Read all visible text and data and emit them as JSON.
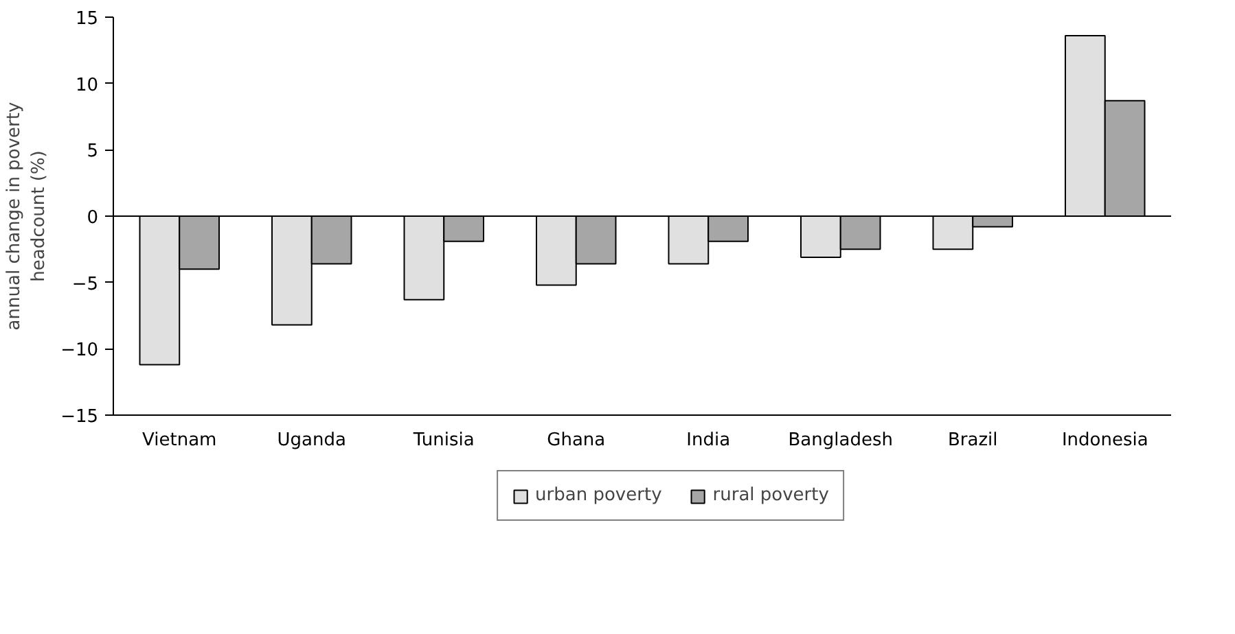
{
  "chart_data": {
    "type": "bar",
    "ylabel": "annual change in poverty\nheadcount (%)",
    "categories": [
      "Vietnam",
      "Uganda",
      "Tunisia",
      "Ghana",
      "India",
      "Bangladesh",
      "Brazil",
      "Indonesia"
    ],
    "series": [
      {
        "name": "urban poverty",
        "color": "#e0e0e0",
        "values": [
          -11.2,
          -8.2,
          -6.3,
          -5.2,
          -3.6,
          -3.1,
          -2.5,
          13.6
        ]
      },
      {
        "name": "rural poverty",
        "color": "#a6a6a6",
        "values": [
          -4.0,
          -3.6,
          -1.9,
          -3.6,
          -1.9,
          -2.5,
          -0.8,
          8.7
        ]
      }
    ],
    "ylim": [
      -15,
      15
    ],
    "yticks": [
      -15,
      -10,
      -5,
      0,
      5,
      10,
      15
    ],
    "ref_lines": [
      {
        "axis": "y",
        "value": 0
      }
    ],
    "grid": false,
    "legend": "bottom"
  }
}
